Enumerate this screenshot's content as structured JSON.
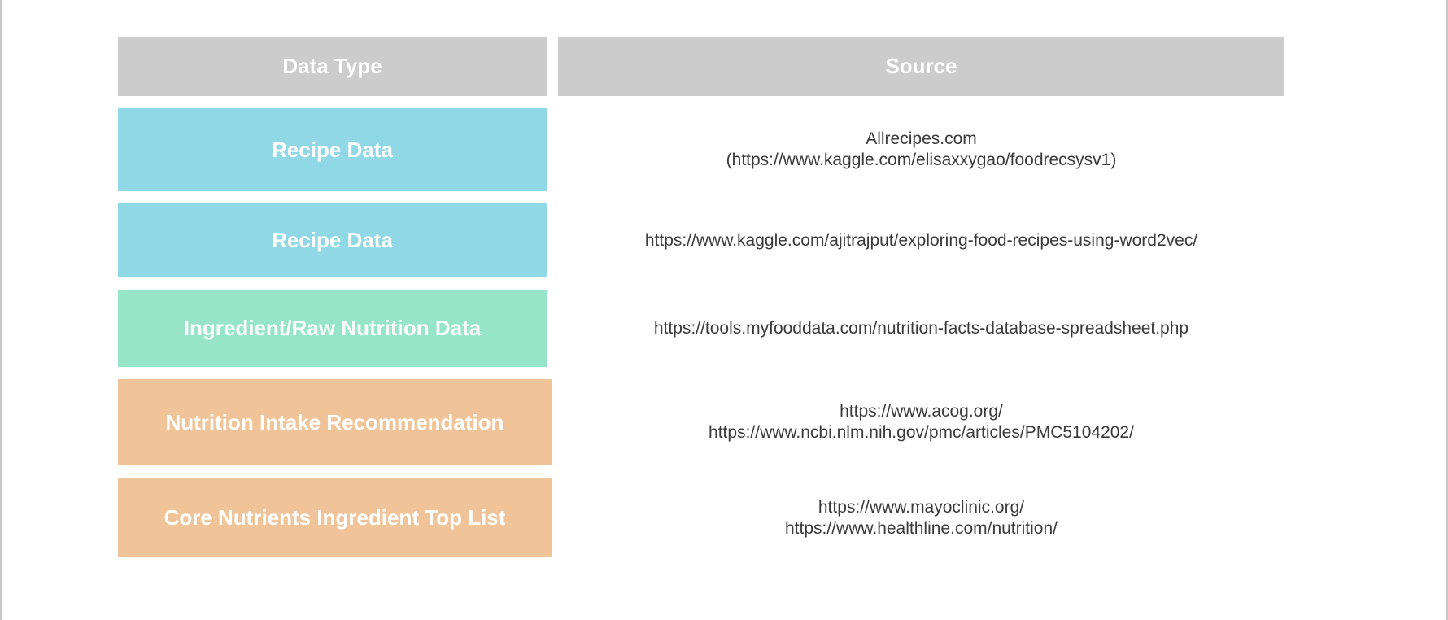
{
  "colors": {
    "header_bg": "#cccccc",
    "recipe": "#91d8e6",
    "ingredient": "#97e5c8",
    "nutrition": "#f0c498",
    "text_light": "#ffffff",
    "text_dark": "#3a3a3a"
  },
  "table": {
    "headers": {
      "data_type": "Data Type",
      "source": "Source"
    },
    "rows": [
      {
        "data_type": "Recipe Data",
        "color": "recipe",
        "source_lines": [
          "Allrecipes.com",
          "(https://www.kaggle.com/elisaxxygao/foodrecsysv1)"
        ]
      },
      {
        "data_type": "Recipe Data",
        "color": "recipe",
        "source_lines": [
          "https://www.kaggle.com/ajitrajput/exploring-food-recipes-using-word2vec/"
        ]
      },
      {
        "data_type": "Ingredient/Raw Nutrition Data",
        "color": "ingredient",
        "source_lines": [
          "https://tools.myfooddata.com/nutrition-facts-database-spreadsheet.php"
        ]
      },
      {
        "data_type": "Nutrition Intake Recommendation",
        "color": "nutrition",
        "source_lines": [
          "https://www.acog.org/",
          "https://www.ncbi.nlm.nih.gov/pmc/articles/PMC5104202/"
        ]
      },
      {
        "data_type": "Core Nutrients Ingredient Top List",
        "color": "nutrition",
        "source_lines": [
          "https://www.mayoclinic.org/",
          "https://www.healthline.com/nutrition/"
        ]
      }
    ]
  }
}
